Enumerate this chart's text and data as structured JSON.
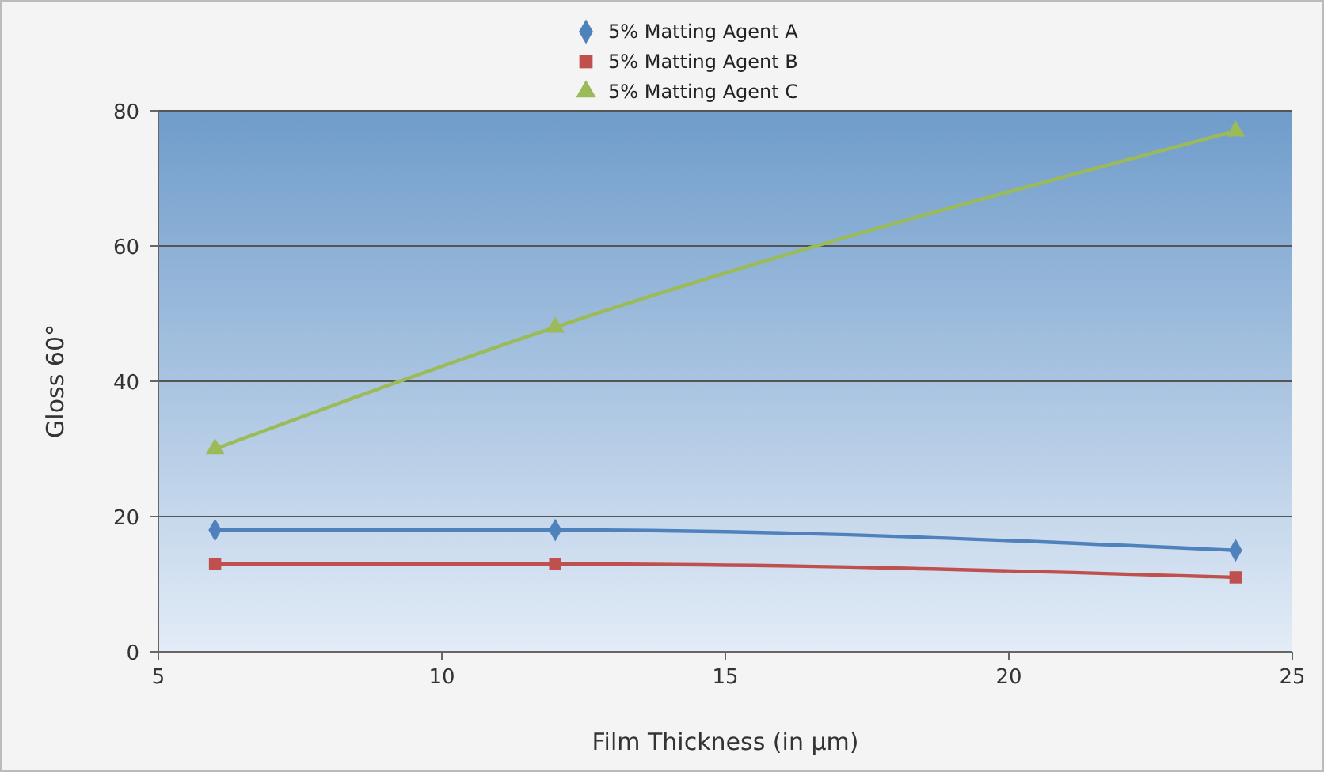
{
  "chart_data": {
    "type": "line",
    "xlabel": "Film Thickness (in µm)",
    "ylabel": "Gloss 60°",
    "x": [
      6,
      12,
      24
    ],
    "series": [
      {
        "name": "5% Matting Agent A",
        "color": "#4f81bd",
        "marker": "diamond",
        "values": [
          18,
          18,
          15
        ]
      },
      {
        "name": "5% Matting Agent B",
        "color": "#c0504d",
        "marker": "square",
        "values": [
          13,
          13,
          11
        ]
      },
      {
        "name": "5% Matting Agent C",
        "color": "#9bbb59",
        "marker": "triangle",
        "values": [
          30,
          48,
          77
        ]
      }
    ],
    "xlim": [
      5,
      25
    ],
    "xticks": [
      5,
      10,
      15,
      20,
      25
    ],
    "ylim": [
      0,
      80
    ],
    "yticks": [
      0,
      20,
      40,
      60,
      80
    ],
    "grid": "y",
    "legend": "top",
    "line_style": "solid"
  }
}
